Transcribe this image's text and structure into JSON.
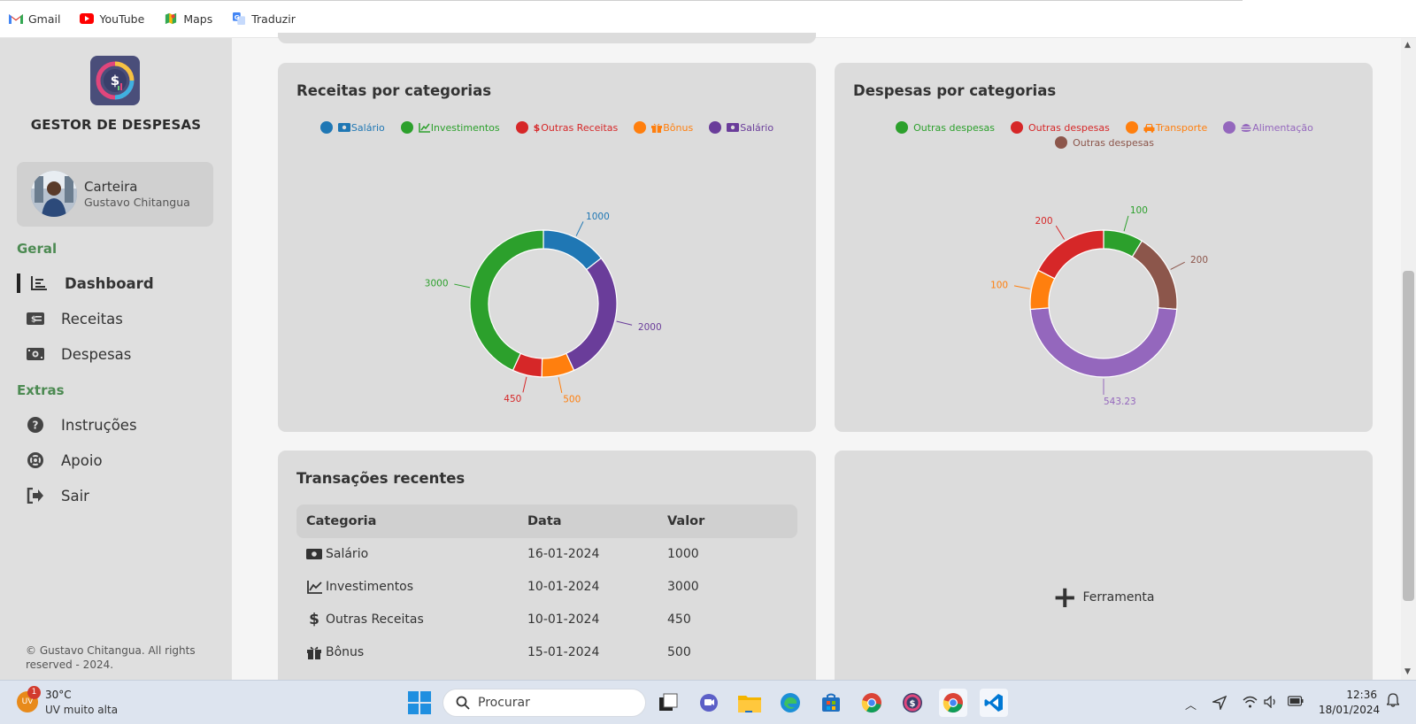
{
  "bookmarks": [
    {
      "label": "Gmail",
      "icon": "gmail-icon"
    },
    {
      "label": "YouTube",
      "icon": "youtube-icon"
    },
    {
      "label": "Maps",
      "icon": "maps-icon"
    },
    {
      "label": "Traduzir",
      "icon": "translate-icon"
    }
  ],
  "sidebar": {
    "brand": "GESTOR DE DESPESAS",
    "wallet": {
      "title": "Carteira",
      "user": "Gustavo Chitangua"
    },
    "sections": [
      {
        "label": "Geral",
        "items": [
          {
            "label": "Dashboard",
            "icon": "dashboard-chart-icon",
            "active": true
          },
          {
            "label": "Receitas",
            "icon": "money-bill-icon"
          },
          {
            "label": "Despesas",
            "icon": "money-bill-wave-icon"
          }
        ]
      },
      {
        "label": "Extras",
        "items": [
          {
            "label": "Instruções",
            "icon": "question-icon"
          },
          {
            "label": "Apoio",
            "icon": "life-ring-icon"
          },
          {
            "label": "Sair",
            "icon": "sign-out-icon"
          }
        ]
      }
    ],
    "copyright": "© Gustavo Chitangua. All rights reserved - 2024."
  },
  "colors": {
    "blue": "#1f77b4",
    "green": "#2ca02c",
    "red": "#d62728",
    "orange": "#ff7f0e",
    "purple": "#6a3d9a",
    "light_purple": "#9467bd",
    "brown": "#8c564b",
    "accent": "#4c8a52"
  },
  "chart_data": [
    {
      "type": "pie",
      "title": "Receitas por categorias",
      "legend": [
        "Salário",
        "Investimentos",
        "Outras Receitas",
        "Bônus",
        "Salário"
      ],
      "legend_placement": "top",
      "series": [
        {
          "values": [
            1000,
            3000,
            450,
            500,
            2000
          ]
        }
      ],
      "slices": [
        {
          "label": "Salário",
          "value": 1000,
          "color": "#1f77b4",
          "icon": "money-bill-icon"
        },
        {
          "label": "Investimentos",
          "value": 3000,
          "color": "#2ca02c",
          "icon": "chart-line-icon"
        },
        {
          "label": "Outras Receitas",
          "value": 450,
          "color": "#d62728",
          "icon": "dollar-icon"
        },
        {
          "label": "Bônus",
          "value": 500,
          "color": "#ff7f0e",
          "icon": "gift-icon"
        },
        {
          "label": "Salário",
          "value": 2000,
          "color": "#6a3d9a",
          "icon": "money-bill-icon"
        }
      ],
      "order": [
        0,
        4,
        3,
        2,
        1
      ]
    },
    {
      "type": "pie",
      "title": "Despesas por categorias",
      "legend": [
        "Outras despesas",
        "Outras despesas",
        "Transporte",
        "Alimentação",
        "Outras despesas"
      ],
      "legend_placement": "top",
      "series": [
        {
          "values": [
            100,
            200,
            100,
            543.23,
            200
          ]
        }
      ],
      "slices": [
        {
          "label": "Outras despesas",
          "value": 100,
          "color": "#2ca02c",
          "icon": ""
        },
        {
          "label": "Outras despesas",
          "value": 200,
          "color": "#d62728",
          "icon": ""
        },
        {
          "label": "Transporte",
          "value": 100,
          "color": "#ff7f0e",
          "icon": "car-icon"
        },
        {
          "label": "Alimentação",
          "value": 543.23,
          "color": "#9467bd",
          "icon": "hamburger-icon"
        },
        {
          "label": "Outras despesas",
          "value": 200,
          "color": "#8c564b",
          "icon": ""
        }
      ],
      "order": [
        0,
        4,
        3,
        2,
        1
      ]
    }
  ],
  "transactions": {
    "title": "Transações recentes",
    "columns": [
      "Categoria",
      "Data",
      "Valor"
    ],
    "rows": [
      {
        "categoria": "Salário",
        "icon": "money-bill-icon",
        "data": "16-01-2024",
        "valor": "1000"
      },
      {
        "categoria": "Investimentos",
        "icon": "chart-line-icon",
        "data": "10-01-2024",
        "valor": "3000"
      },
      {
        "categoria": "Outras Receitas",
        "icon": "dollar-icon",
        "data": "10-01-2024",
        "valor": "450"
      },
      {
        "categoria": "Bônus",
        "icon": "gift-icon",
        "data": "15-01-2024",
        "valor": "500"
      }
    ]
  },
  "tool_card": {
    "label": "Ferramenta"
  },
  "taskbar": {
    "weather": {
      "badge": "1",
      "icon_text": "UV",
      "temp": "30°C",
      "desc": "UV muito alta"
    },
    "search_placeholder": "Procurar",
    "clock": {
      "time": "12:36",
      "date": "18/01/2024"
    }
  }
}
